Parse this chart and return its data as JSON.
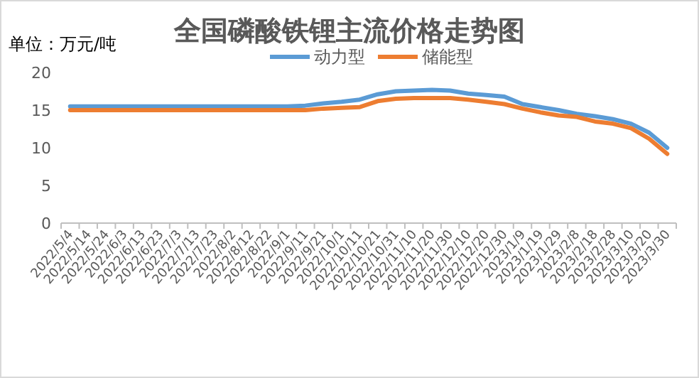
{
  "chart_data": {
    "type": "line",
    "title": "全国磷酸铁锂主流价格走势图",
    "ylabel": "单位：万元/吨",
    "categories": [
      "2022/5/4",
      "2022/5/14",
      "2022/5/24",
      "2022/6/3",
      "2022/6/13",
      "2022/6/23",
      "2022/7/3",
      "2022/7/13",
      "2022/7/23",
      "2022/8/2",
      "2022/8/12",
      "2022/8/22",
      "2022/9/1",
      "2022/9/11",
      "2022/9/21",
      "2022/10/1",
      "2022/10/11",
      "2022/10/21",
      "2022/10/31",
      "2022/11/10",
      "2022/11/20",
      "2022/11/30",
      "2022/12/10",
      "2022/12/20",
      "2022/12/30",
      "2023/1/9",
      "2023/1/19",
      "2023/1/29",
      "2023/2/8",
      "2023/2/18",
      "2023/2/28",
      "2023/3/10",
      "2023/3/20",
      "2023/3/30"
    ],
    "series": [
      {
        "name": "动力型",
        "color": "#5b9bd5",
        "values": [
          15.5,
          15.5,
          15.5,
          15.5,
          15.5,
          15.5,
          15.5,
          15.5,
          15.5,
          15.5,
          15.5,
          15.5,
          15.5,
          15.6,
          15.9,
          16.1,
          16.4,
          17.1,
          17.5,
          17.6,
          17.7,
          17.6,
          17.2,
          17.0,
          16.8,
          15.8,
          15.4,
          15.0,
          14.5,
          14.2,
          13.8,
          13.2,
          12.0,
          10.0
        ]
      },
      {
        "name": "储能型",
        "color": "#ed7d31",
        "values": [
          15.0,
          15.0,
          15.0,
          15.0,
          15.0,
          15.0,
          15.0,
          15.0,
          15.0,
          15.0,
          15.0,
          15.0,
          15.0,
          15.0,
          15.2,
          15.3,
          15.4,
          16.2,
          16.5,
          16.6,
          16.6,
          16.6,
          16.4,
          16.1,
          15.8,
          15.2,
          14.7,
          14.3,
          14.1,
          13.5,
          13.2,
          12.6,
          11.2,
          9.2
        ]
      }
    ],
    "ylim": [
      0,
      20
    ],
    "yticks": [
      0,
      5,
      10,
      15,
      20
    ],
    "legend": "top",
    "marker": "none",
    "line_style": "solid"
  }
}
